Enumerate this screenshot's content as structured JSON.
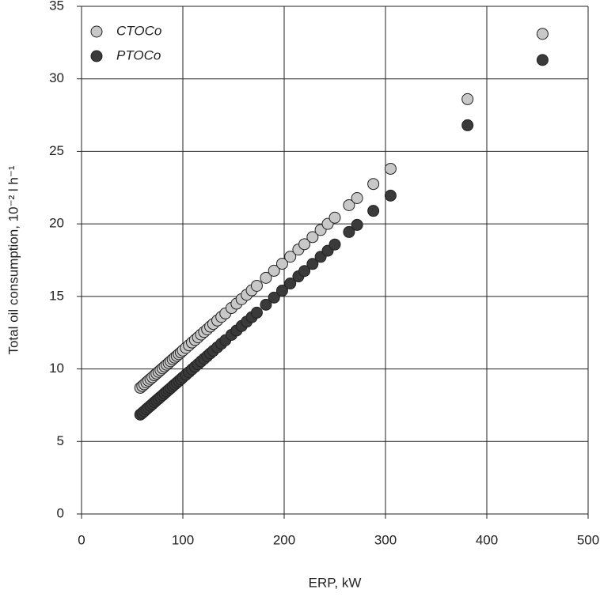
{
  "chart_data": {
    "type": "scatter",
    "xlabel": "ERP, kW",
    "ylabel": "Total oil consumption, 10⁻² l h⁻¹",
    "x": [
      58,
      60,
      62,
      64,
      66,
      68,
      70,
      72,
      74,
      76,
      78,
      80,
      82,
      84,
      86,
      88,
      90,
      92,
      94,
      96,
      98,
      100,
      103,
      106,
      109,
      112,
      115,
      118,
      121,
      124,
      127,
      130,
      134,
      138,
      142,
      148,
      153,
      158,
      163,
      168,
      173,
      182,
      190,
      198,
      206,
      214,
      220,
      228,
      236,
      243,
      250,
      264,
      272,
      288,
      305,
      381,
      455
    ],
    "series": [
      {
        "name": "CTOCo",
        "color": "#c8c8c8",
        "values": [
          8.7,
          8.82,
          8.94,
          9.07,
          9.19,
          9.31,
          9.43,
          9.56,
          9.68,
          9.8,
          9.92,
          10.04,
          10.17,
          10.29,
          10.41,
          10.53,
          10.66,
          10.78,
          10.9,
          11.02,
          11.14,
          11.27,
          11.45,
          11.63,
          11.82,
          12.0,
          12.18,
          12.37,
          12.55,
          12.73,
          12.92,
          13.1,
          13.34,
          13.59,
          13.83,
          14.2,
          14.5,
          14.81,
          15.11,
          15.42,
          15.73,
          16.28,
          16.77,
          17.25,
          17.74,
          18.23,
          18.6,
          19.09,
          19.58,
          20.0,
          20.43,
          21.29,
          21.78,
          22.75,
          23.8,
          28.6,
          33.1
        ]
      },
      {
        "name": "PTOCo",
        "color": "#3a3a3a",
        "values": [
          6.85,
          6.97,
          7.09,
          7.22,
          7.34,
          7.46,
          7.58,
          7.71,
          7.83,
          7.95,
          8.07,
          8.19,
          8.32,
          8.44,
          8.56,
          8.68,
          8.81,
          8.93,
          9.05,
          9.17,
          9.29,
          9.42,
          9.6,
          9.78,
          9.97,
          10.15,
          10.33,
          10.52,
          10.7,
          10.88,
          11.07,
          11.25,
          11.49,
          11.74,
          11.98,
          12.35,
          12.65,
          12.96,
          13.26,
          13.57,
          13.88,
          14.43,
          14.92,
          15.4,
          15.89,
          16.38,
          16.75,
          17.24,
          17.73,
          18.15,
          18.58,
          19.44,
          19.93,
          20.9,
          21.95,
          26.8,
          31.3
        ]
      }
    ],
    "xlim": [
      0,
      500
    ],
    "xticks": [
      0,
      100,
      200,
      300,
      400,
      500
    ],
    "ylim": [
      0,
      35
    ],
    "yticks": [
      0,
      5,
      10,
      15,
      20,
      25,
      30,
      35
    ],
    "grid": true,
    "legend": "upper left"
  }
}
